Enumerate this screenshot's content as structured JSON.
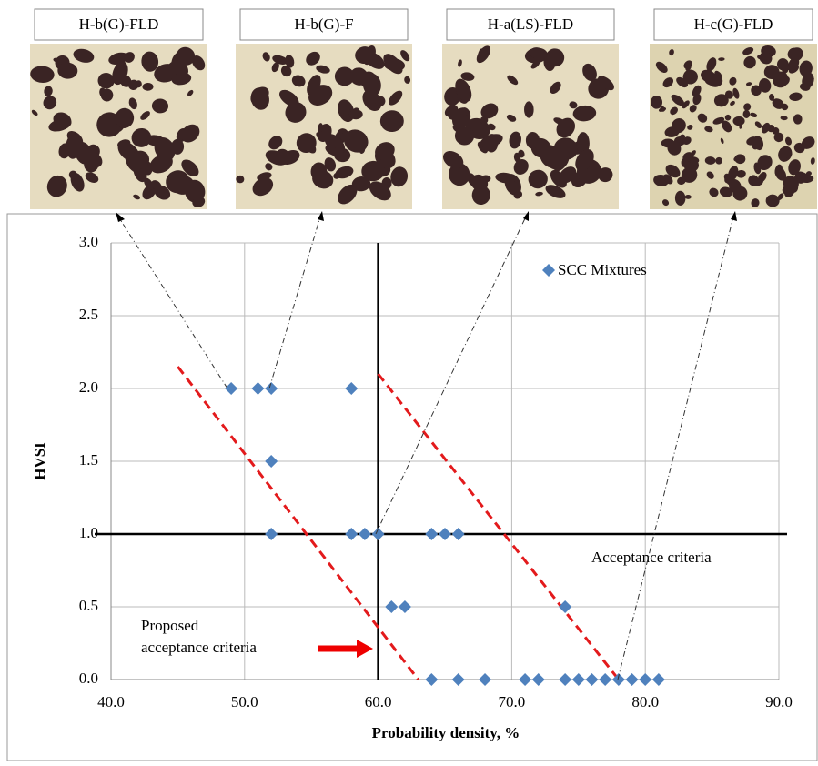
{
  "chart_data": {
    "type": "scatter",
    "photos": [
      "H-b(G)-FLD",
      "H-b(G)-F",
      "H-a(LS)-FLD",
      "H-c(G)-FLD"
    ],
    "x_label": "Probability density, %",
    "y_label": "HVSI",
    "series": [
      {
        "name": "SCC Mixtures",
        "color": "#4f81bd",
        "x": [
          49,
          51,
          52,
          58,
          52,
          52,
          58,
          59,
          60,
          64,
          65,
          66,
          61,
          62,
          74,
          64,
          66,
          68,
          71,
          72,
          74,
          75,
          76,
          77,
          78,
          79,
          80,
          81
        ],
        "values": [
          2.0,
          2.0,
          2.0,
          2.0,
          1.5,
          1.0,
          1.0,
          1.0,
          1.0,
          1.0,
          1.0,
          1.0,
          0.5,
          0.5,
          0.5,
          0,
          0,
          0,
          0,
          0,
          0,
          0,
          0,
          0,
          0,
          0,
          0,
          0
        ]
      }
    ],
    "xlim": [
      40,
      90
    ],
    "ylim": [
      0,
      3
    ],
    "xticks": [
      {
        "value": 40,
        "label": "40.0"
      },
      {
        "value": 50,
        "label": "50.0"
      },
      {
        "value": 60,
        "label": "60.0"
      },
      {
        "value": 70,
        "label": "70.0"
      },
      {
        "value": 80,
        "label": "80.0"
      },
      {
        "value": 90,
        "label": "90.0"
      }
    ],
    "yticks": [
      {
        "value": 0,
        "label": "0.0"
      },
      {
        "value": 0.5,
        "label": "0.5"
      },
      {
        "value": 1,
        "label": "1.0"
      },
      {
        "value": 1.5,
        "label": "1.5"
      },
      {
        "value": 2,
        "label": "2.0"
      },
      {
        "value": 2.5,
        "label": "2.5"
      },
      {
        "value": 3,
        "label": "3.0"
      }
    ],
    "grid": true,
    "vline": 60,
    "hline": 1.0,
    "reference_lines": [
      {
        "x": [
          45,
          63
        ],
        "y": [
          2.15,
          0
        ],
        "color": "#e31a1c"
      },
      {
        "x": [
          60,
          78
        ],
        "y": [
          2.1,
          0
        ],
        "color": "#e31a1c"
      }
    ],
    "acceptance_label": "Acceptance criteria",
    "proposed_label": [
      "Proposed",
      "acceptance criteria"
    ]
  }
}
